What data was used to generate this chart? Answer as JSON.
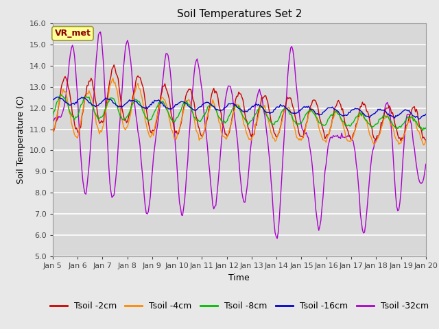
{
  "title": "Soil Temperatures Set 2",
  "xlabel": "Time",
  "ylabel": "Soil Temperature (C)",
  "ylim": [
    5.0,
    16.0
  ],
  "yticks": [
    5.0,
    6.0,
    7.0,
    8.0,
    9.0,
    10.0,
    11.0,
    12.0,
    13.0,
    14.0,
    15.0,
    16.0
  ],
  "xtick_labels": [
    "Jan 5",
    "Jan 6",
    "Jan 7",
    "Jan 8",
    "Jan 9",
    "Jan 10",
    "Jan 11",
    "Jan 12",
    "Jan 13",
    "Jan 14",
    "Jan 15",
    "Jan 16",
    "Jan 17",
    "Jan 18",
    "Jan 19",
    "Jan 20"
  ],
  "legend_labels": [
    "Tsoil -2cm",
    "Tsoil -4cm",
    "Tsoil -8cm",
    "Tsoil -16cm",
    "Tsoil -32cm"
  ],
  "colors": {
    "2cm": "#cc0000",
    "4cm": "#ff8800",
    "8cm": "#00bb00",
    "16cm": "#0000cc",
    "32cm": "#aa00cc"
  },
  "annotation_text": "VR_met",
  "annotation_bbox_facecolor": "#ffff99",
  "annotation_text_color": "#8b0000",
  "annotation_bbox_edgecolor": "#999933",
  "fig_facecolor": "#e8e8e8",
  "axes_facecolor": "#d8d8d8",
  "grid_color": "#ffffff",
  "title_fontsize": 11,
  "label_fontsize": 9,
  "tick_fontsize": 8,
  "legend_fontsize": 9
}
